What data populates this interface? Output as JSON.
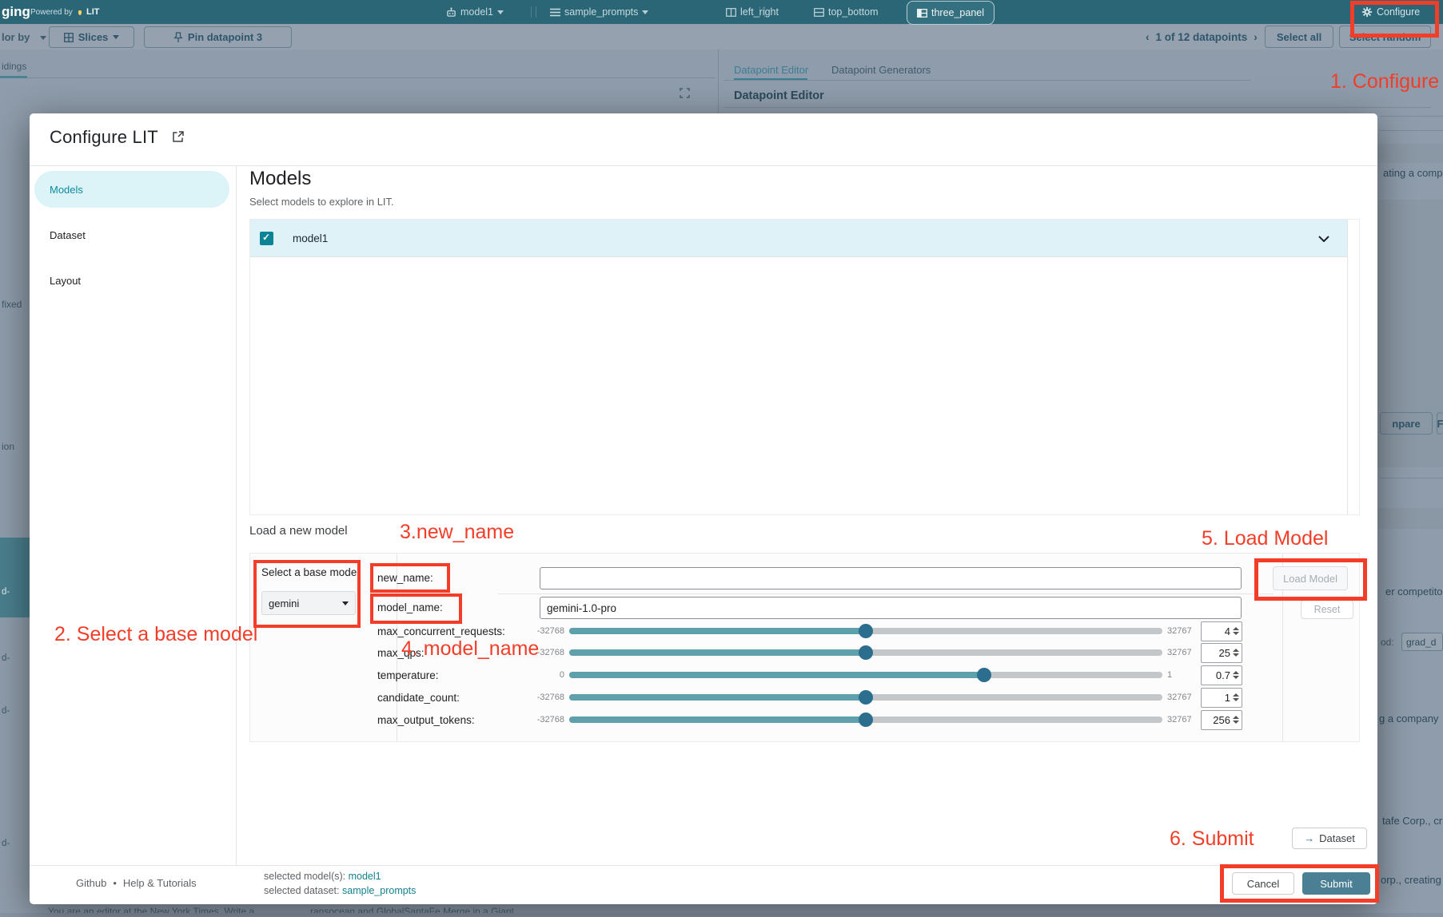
{
  "annotations": {
    "accent_color": "#f23d28",
    "step1": "1. Configure",
    "step2": "2. Select a base model",
    "step3": "3.new_name",
    "step4": "4. model_name",
    "step5": "5. Load Model",
    "step6": "6. Submit"
  },
  "header": {
    "app_fragment": "ging",
    "powered_by": "Powered by",
    "lit_label": "LIT",
    "model_chip": "model1",
    "dataset_chip": "sample_prompts",
    "layout_left_right": "left_right",
    "layout_top_bottom": "top_bottom",
    "layout_three_panel": "three_panel",
    "configure_label": "Configure"
  },
  "toolbar": {
    "color_by_fragment": "lor by",
    "slices_label": "Slices",
    "pin_label": "Pin datapoint 3",
    "prev": "‹",
    "pagination": "1 of 12 datapoints",
    "next": "›",
    "select_all": "Select all",
    "select_random": "Select random"
  },
  "background": {
    "tab_fragment": "idings",
    "frag_fixed": "fixed",
    "frag_ion": "ion",
    "frag_d1": "d-",
    "frag_d2": "d-",
    "frag_d3": "d-",
    "frag_d4": "d-",
    "dp_editor_tab": "Datapoint Editor",
    "dp_generators_tab": "Datapoint Generators",
    "dp_editor_heading": "Datapoint Editor",
    "right_frag_1": "ating a comp",
    "right_btn_frag": "npare",
    "right_btn_frag2": "F",
    "right_frag_2": "er competito",
    "right_frag_od": "od:",
    "right_chip": "grad_d",
    "right_frag_3": "g a company",
    "right_frag_4": "tafe Corp., cr",
    "right_frag_5": "orp., creating",
    "bottom_frag_1": "You are an editor at the New York Times. Write a",
    "bottom_frag_2": "ransocean and GlobalSantaFe Merge in a Giant"
  },
  "modal": {
    "title": "Configure LIT",
    "nav": {
      "models": "Models",
      "dataset": "Dataset",
      "layout": "Layout"
    },
    "models_section": {
      "heading": "Models",
      "subheading": "Select models to explore in LIT.",
      "row_label": "model1",
      "row_checked": true
    },
    "loader": {
      "heading": "Load a new model",
      "base_label": "Select a base model",
      "base_value": "gemini",
      "new_name_label": "new_name:",
      "new_name_value": "",
      "model_name_label": "model_name:",
      "model_name_value": "gemini-1.0-pro",
      "sliders": [
        {
          "label": "max_concurrent_requests:",
          "min": "-32768",
          "max": "32767",
          "value": "4",
          "pct": 50
        },
        {
          "label": "max_qps:",
          "min": "-32768",
          "max": "32767",
          "value": "25",
          "pct": 50
        },
        {
          "label": "temperature:",
          "min": "0",
          "max": "1",
          "value": "0.7",
          "pct": 70
        },
        {
          "label": "candidate_count:",
          "min": "-32768",
          "max": "32767",
          "value": "1",
          "pct": 50
        },
        {
          "label": "max_output_tokens:",
          "min": "-32768",
          "max": "32767",
          "value": "256",
          "pct": 50
        }
      ],
      "load_model": "Load Model",
      "reset": "Reset"
    },
    "dataset_arrow": "→",
    "dataset_button": "Dataset",
    "footer": {
      "github": "Github",
      "separator": "•",
      "help": "Help & Tutorials",
      "sel_model_label": "selected model(s):",
      "sel_model": "model1",
      "sel_dataset_label": "selected dataset:",
      "sel_dataset": "sample_prompts",
      "cancel": "Cancel",
      "submit": "Submit"
    }
  }
}
